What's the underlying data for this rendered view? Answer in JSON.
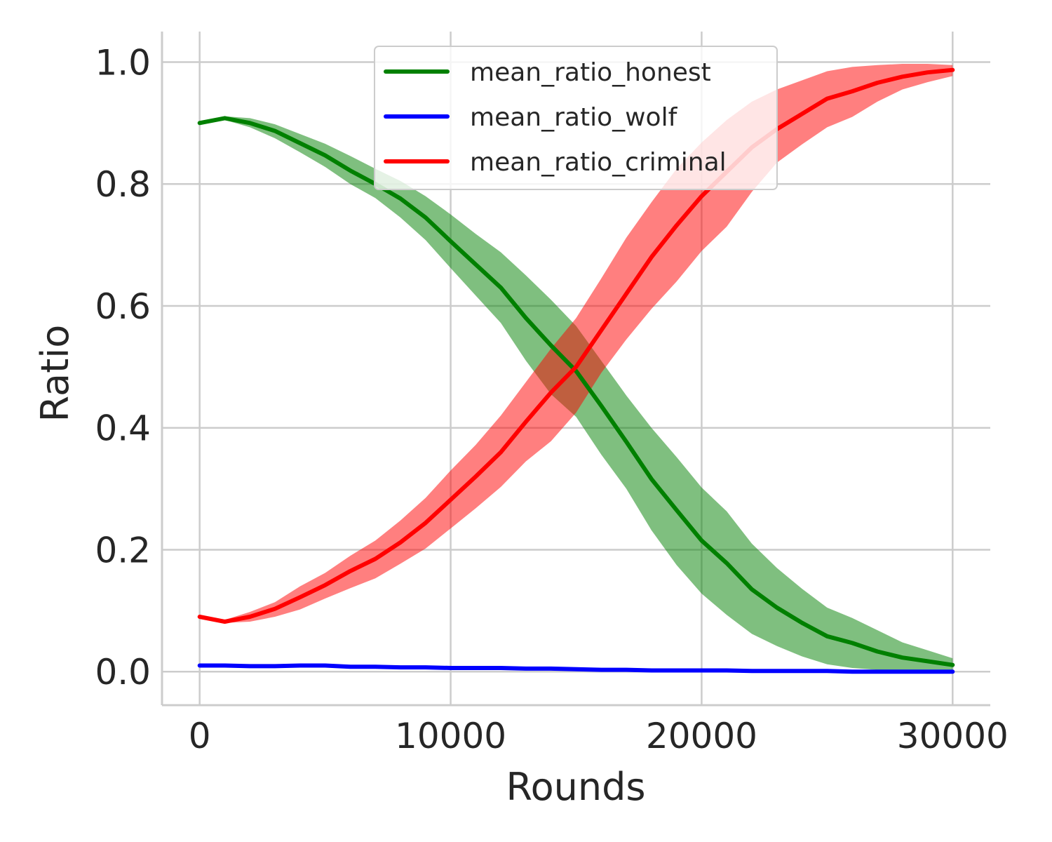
{
  "chart_data": {
    "type": "line",
    "xlabel": "Rounds",
    "ylabel": "Ratio",
    "xlim": [
      -1500,
      31500
    ],
    "ylim": [
      -0.055,
      1.05
    ],
    "xticks": [
      0,
      10000,
      20000,
      30000
    ],
    "xtick_labels": [
      "0",
      "10000",
      "20000",
      "30000"
    ],
    "yticks": [
      0.0,
      0.2,
      0.4,
      0.6,
      0.8,
      1.0
    ],
    "ytick_labels": [
      "0.0",
      "0.2",
      "0.4",
      "0.6",
      "0.8",
      "1.0"
    ],
    "grid": true,
    "legend_position": "top-center",
    "x": [
      0,
      1000,
      2000,
      3000,
      4000,
      5000,
      6000,
      7000,
      8000,
      9000,
      10000,
      11000,
      12000,
      13000,
      14000,
      15000,
      16000,
      17000,
      18000,
      19000,
      20000,
      21000,
      22000,
      23000,
      24000,
      25000,
      26000,
      27000,
      28000,
      29000,
      30000
    ],
    "series": [
      {
        "name": "mean_ratio_honest",
        "color": "#008000",
        "values": [
          0.9,
          0.908,
          0.9,
          0.887,
          0.867,
          0.847,
          0.822,
          0.8,
          0.776,
          0.745,
          0.706,
          0.668,
          0.63,
          0.58,
          0.535,
          0.493,
          0.436,
          0.377,
          0.316,
          0.265,
          0.215,
          0.178,
          0.135,
          0.105,
          0.08,
          0.058,
          0.047,
          0.033,
          0.023,
          0.017,
          0.011
        ],
        "lower": [
          0.9,
          0.905,
          0.893,
          0.875,
          0.852,
          0.828,
          0.8,
          0.777,
          0.745,
          0.708,
          0.662,
          0.617,
          0.572,
          0.51,
          0.455,
          0.418,
          0.356,
          0.3,
          0.232,
          0.175,
          0.128,
          0.093,
          0.062,
          0.042,
          0.025,
          0.012,
          0.006,
          0.003,
          0.002,
          0.001,
          0.001
        ],
        "upper": [
          0.9,
          0.911,
          0.908,
          0.898,
          0.882,
          0.866,
          0.846,
          0.825,
          0.805,
          0.78,
          0.75,
          0.718,
          0.688,
          0.65,
          0.61,
          0.567,
          0.51,
          0.453,
          0.4,
          0.352,
          0.302,
          0.263,
          0.21,
          0.17,
          0.136,
          0.105,
          0.088,
          0.068,
          0.048,
          0.035,
          0.022
        ]
      },
      {
        "name": "mean_ratio_wolf",
        "color": "#0000ff",
        "values": [
          0.01,
          0.01,
          0.009,
          0.009,
          0.01,
          0.01,
          0.008,
          0.008,
          0.007,
          0.007,
          0.006,
          0.006,
          0.006,
          0.005,
          0.005,
          0.004,
          0.003,
          0.003,
          0.002,
          0.002,
          0.002,
          0.002,
          0.001,
          0.001,
          0.001,
          0.001,
          0.0,
          0.0,
          0.0,
          0.0,
          0.0
        ],
        "lower": [
          0.007,
          0.007,
          0.006,
          0.006,
          0.007,
          0.007,
          0.005,
          0.005,
          0.004,
          0.004,
          0.003,
          0.003,
          0.003,
          0.002,
          0.002,
          0.001,
          0.001,
          0.001,
          0.0,
          0.0,
          0.0,
          0.0,
          0.0,
          0.0,
          0.0,
          0.0,
          0.0,
          0.0,
          0.0,
          0.0,
          0.0
        ],
        "upper": [
          0.013,
          0.013,
          0.012,
          0.012,
          0.013,
          0.013,
          0.011,
          0.011,
          0.01,
          0.01,
          0.009,
          0.009,
          0.009,
          0.008,
          0.008,
          0.007,
          0.005,
          0.005,
          0.004,
          0.004,
          0.004,
          0.004,
          0.003,
          0.003,
          0.002,
          0.002,
          0.001,
          0.001,
          0.001,
          0.001,
          0.001
        ]
      },
      {
        "name": "mean_ratio_criminal",
        "color": "#ff0000",
        "values": [
          0.09,
          0.082,
          0.09,
          0.103,
          0.122,
          0.142,
          0.165,
          0.185,
          0.212,
          0.244,
          0.282,
          0.32,
          0.36,
          0.41,
          0.458,
          0.5,
          0.56,
          0.62,
          0.68,
          0.732,
          0.78,
          0.82,
          0.86,
          0.89,
          0.915,
          0.94,
          0.952,
          0.966,
          0.976,
          0.983,
          0.987
        ],
        "lower": [
          0.09,
          0.08,
          0.082,
          0.09,
          0.102,
          0.12,
          0.137,
          0.153,
          0.177,
          0.202,
          0.235,
          0.268,
          0.303,
          0.345,
          0.378,
          0.425,
          0.49,
          0.545,
          0.595,
          0.64,
          0.69,
          0.73,
          0.787,
          0.835,
          0.865,
          0.893,
          0.91,
          0.935,
          0.955,
          0.967,
          0.977
        ],
        "upper": [
          0.09,
          0.085,
          0.098,
          0.114,
          0.14,
          0.162,
          0.19,
          0.215,
          0.248,
          0.285,
          0.33,
          0.372,
          0.42,
          0.475,
          0.53,
          0.58,
          0.645,
          0.712,
          0.77,
          0.825,
          0.868,
          0.905,
          0.935,
          0.955,
          0.97,
          0.985,
          0.992,
          0.995,
          0.997,
          0.997,
          0.995
        ]
      }
    ]
  }
}
